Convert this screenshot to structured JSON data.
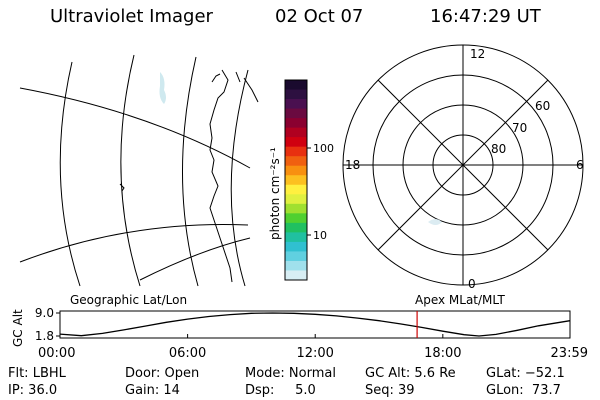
{
  "header": {
    "instrument": "Ultraviolet Imager",
    "date": "02 Oct 07",
    "time": "16:47:29 UT"
  },
  "colorbar": {
    "label": "photon cm⁻²s⁻¹",
    "tick_labels": [
      "100",
      "10"
    ],
    "colors": [
      "#1a0a2e",
      "#2d1040",
      "#4a1050",
      "#6a0a40",
      "#8a0030",
      "#b00020",
      "#d00010",
      "#e83010",
      "#f06010",
      "#f89010",
      "#fcc020",
      "#fff040",
      "#e0f040",
      "#a0e030",
      "#50d030",
      "#20c060",
      "#20c0a0",
      "#30c0d0",
      "#60d0e0",
      "#a0e0ec",
      "#d8eef4"
    ]
  },
  "maps": {
    "left_title": "Geographic Lat/Lon",
    "right_title": "Apex MLat/MLT",
    "polar_hour_labels": [
      "12",
      "18",
      "6",
      "0"
    ],
    "polar_lat_labels": [
      "60",
      "70",
      "80"
    ]
  },
  "chart_data": {
    "type": "line",
    "title": "",
    "ylabel": "GC Alt",
    "yticks": [
      "9.0",
      "1.8"
    ],
    "ylim": [
      1.8,
      9.0
    ],
    "xlim_hours": [
      0,
      23.98
    ],
    "xtick_labels": [
      "00:00",
      "06:00",
      "12:00",
      "18:00",
      "23:59"
    ],
    "series": [
      {
        "x_hours": [
          0,
          1,
          2,
          3,
          4,
          5,
          6,
          7,
          8,
          9,
          10,
          11,
          12,
          13,
          14,
          15,
          16,
          17,
          18,
          19,
          19.7,
          20.5,
          21.5,
          22.5,
          23.98
        ],
        "y_re": [
          2.4,
          1.9,
          2.6,
          3.7,
          4.9,
          6.1,
          7.1,
          7.9,
          8.5,
          8.9,
          9.0,
          8.9,
          8.6,
          8.1,
          7.4,
          6.6,
          5.6,
          4.5,
          3.3,
          2.2,
          1.8,
          2.3,
          3.6,
          5.0,
          6.6
        ]
      }
    ],
    "marker_hours": 16.79,
    "marker_color": "#cc0000"
  },
  "footer": {
    "flt": "Flt: LBHL",
    "ip": "IP: 36.0",
    "door": "Door: Open",
    "gain": "Gain: 14",
    "mode": "Mode: Normal",
    "dsp": "Dsp:     5.0",
    "gcalt": "GC Alt: 5.6 Re",
    "seq": "Seq: 39",
    "glat": "GLat: −52.1",
    "glon": "GLon:  73.7"
  }
}
